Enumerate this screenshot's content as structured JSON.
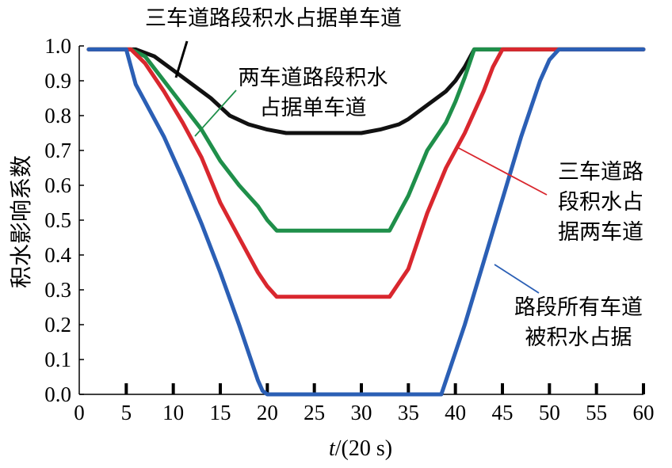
{
  "chart_data": {
    "type": "line",
    "title": "",
    "xlabel_italic": "t",
    "xlabel_rest": "/(20 s)",
    "ylabel": "积水影响系数",
    "xlim": [
      0,
      60
    ],
    "ylim": [
      0.0,
      1.0
    ],
    "xticks": [
      "0",
      "5",
      "10",
      "15",
      "20",
      "25",
      "30",
      "35",
      "40",
      "45",
      "50",
      "55",
      "60"
    ],
    "yticks": [
      "0.0",
      "0.1",
      "0.2",
      "0.3",
      "0.4",
      "0.5",
      "0.6",
      "0.7",
      "0.8",
      "0.9",
      "1.0"
    ],
    "grid": false,
    "series": [
      {
        "name": "三车道路段积水占据单车道",
        "color": "#111111",
        "points": [
          [
            1,
            0.99
          ],
          [
            6,
            0.99
          ],
          [
            8,
            0.97
          ],
          [
            10,
            0.93
          ],
          [
            12,
            0.89
          ],
          [
            14,
            0.85
          ],
          [
            16,
            0.8
          ],
          [
            18,
            0.775
          ],
          [
            20,
            0.76
          ],
          [
            22,
            0.75
          ],
          [
            25,
            0.75
          ],
          [
            28,
            0.75
          ],
          [
            30,
            0.75
          ],
          [
            32,
            0.76
          ],
          [
            34,
            0.775
          ],
          [
            35,
            0.79
          ],
          [
            37,
            0.83
          ],
          [
            39,
            0.87
          ],
          [
            40,
            0.9
          ],
          [
            41,
            0.94
          ],
          [
            42,
            0.99
          ],
          [
            44,
            0.99
          ],
          [
            60,
            0.99
          ]
        ]
      },
      {
        "name": "两车道路段积水占据单车道",
        "color": "#1f8f4a",
        "points": [
          [
            1,
            0.99
          ],
          [
            5.5,
            0.99
          ],
          [
            7,
            0.97
          ],
          [
            9,
            0.9
          ],
          [
            11,
            0.83
          ],
          [
            13,
            0.76
          ],
          [
            15,
            0.67
          ],
          [
            17,
            0.6
          ],
          [
            19,
            0.54
          ],
          [
            20,
            0.5
          ],
          [
            21,
            0.47
          ],
          [
            24,
            0.47
          ],
          [
            28,
            0.47
          ],
          [
            30,
            0.47
          ],
          [
            33,
            0.47
          ],
          [
            35,
            0.57
          ],
          [
            37,
            0.7
          ],
          [
            39,
            0.78
          ],
          [
            40,
            0.84
          ],
          [
            41,
            0.91
          ],
          [
            42,
            0.99
          ],
          [
            44,
            0.99
          ],
          [
            60,
            0.99
          ]
        ]
      },
      {
        "name": "三车道路段积水占据两车道",
        "color": "#d9272e",
        "points": [
          [
            1,
            0.99
          ],
          [
            5.5,
            0.99
          ],
          [
            7,
            0.95
          ],
          [
            9,
            0.87
          ],
          [
            11,
            0.78
          ],
          [
            13,
            0.68
          ],
          [
            15,
            0.55
          ],
          [
            17,
            0.45
          ],
          [
            19,
            0.35
          ],
          [
            20,
            0.31
          ],
          [
            21,
            0.28
          ],
          [
            24,
            0.28
          ],
          [
            28,
            0.28
          ],
          [
            30,
            0.28
          ],
          [
            33,
            0.28
          ],
          [
            35,
            0.36
          ],
          [
            37,
            0.52
          ],
          [
            39,
            0.65
          ],
          [
            41,
            0.75
          ],
          [
            43,
            0.87
          ],
          [
            44,
            0.94
          ],
          [
            45,
            0.99
          ],
          [
            47,
            0.99
          ],
          [
            60,
            0.99
          ]
        ]
      },
      {
        "name": "路段所有车道被积水占据",
        "color": "#2b5fb5",
        "points": [
          [
            1,
            0.99
          ],
          [
            5,
            0.99
          ],
          [
            6,
            0.89
          ],
          [
            7,
            0.84
          ],
          [
            9,
            0.74
          ],
          [
            11,
            0.62
          ],
          [
            13,
            0.49
          ],
          [
            15,
            0.35
          ],
          [
            17,
            0.2
          ],
          [
            18,
            0.12
          ],
          [
            19,
            0.04
          ],
          [
            19.5,
            0.01
          ],
          [
            20,
            0.0
          ],
          [
            23,
            0.0
          ],
          [
            38,
            0.0
          ],
          [
            38.5,
            0.0
          ],
          [
            39,
            0.04
          ],
          [
            41,
            0.2
          ],
          [
            43,
            0.38
          ],
          [
            45,
            0.56
          ],
          [
            47,
            0.74
          ],
          [
            49,
            0.9
          ],
          [
            50,
            0.96
          ],
          [
            51,
            0.99
          ],
          [
            53,
            0.99
          ],
          [
            60,
            0.99
          ]
        ]
      }
    ],
    "annotations": [
      {
        "lines": [
          "三车道路段积水占据单车道"
        ]
      },
      {
        "lines": [
          "两车道路段积水",
          "占据单车道"
        ]
      },
      {
        "lines": [
          "三车道路",
          "段积水占",
          "据两车道"
        ]
      },
      {
        "lines": [
          "路段所有车道",
          "被积水占据"
        ]
      }
    ]
  }
}
